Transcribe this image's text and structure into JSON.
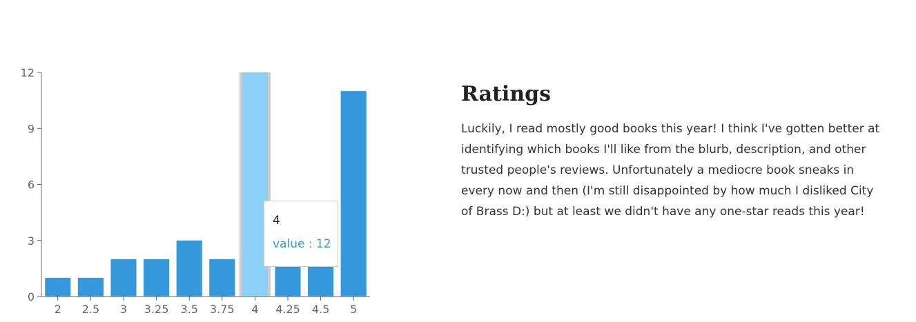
{
  "chart_data": {
    "type": "bar",
    "categories": [
      "2",
      "2.5",
      "3",
      "3.25",
      "3.5",
      "3.75",
      "4",
      "4.25",
      "4.5",
      "5"
    ],
    "values": [
      1,
      1,
      2,
      2,
      3,
      2,
      12,
      2,
      2,
      11
    ],
    "title": "",
    "xlabel": "",
    "ylabel": "",
    "ylim": [
      0,
      12
    ],
    "yticks": [
      0,
      3,
      6,
      9,
      12
    ],
    "grid": false,
    "colors": {
      "bar": "#3498db",
      "bar_active": "#8ad0f8",
      "cursor": "#cccccc",
      "axis": "#666666"
    },
    "active_index": 6,
    "tooltip": {
      "label": "4",
      "value_text": "value : 12"
    }
  },
  "section": {
    "title": "Ratings",
    "body": "Luckily, I read mostly good books this year! I think I've gotten better at identifying which books I'll like from the blurb, description, and other trusted people's reviews. Unfortunately a mediocre book sneaks in every now and then (I'm still disappointed by how much I disliked City of Brass D:) but at least we didn't have any one-star reads this year!"
  }
}
